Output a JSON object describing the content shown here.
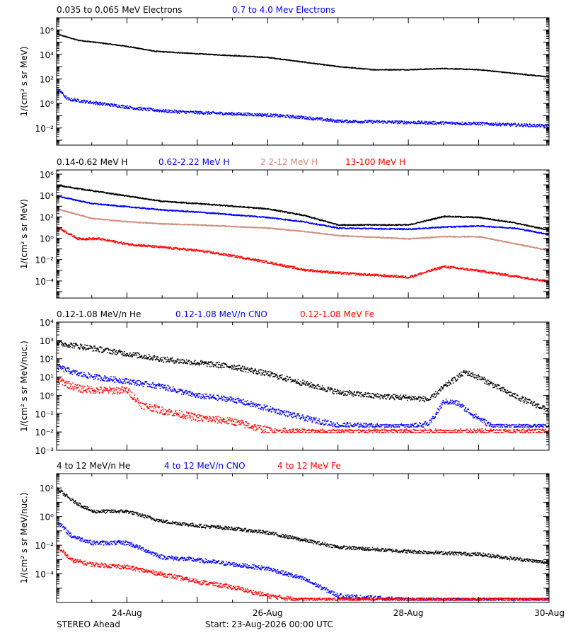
{
  "footer": {
    "left_label": "STEREO Ahead",
    "start_label": "Start: 23-Aug-2026 00:00 UTC"
  },
  "x_axis": {
    "tick_labels": [
      "24-Aug",
      "26-Aug",
      "28-Aug",
      "30-Aug"
    ],
    "tick_days": [
      1,
      3,
      5,
      7
    ],
    "range_days": [
      0,
      7
    ]
  },
  "chart_data": [
    {
      "type": "scatter",
      "yscale": "log",
      "ylabel": "1/(cm² s sr MeV)",
      "ylim_log10": [
        -3.4,
        7
      ],
      "y_tick_labels": [
        "10⁻²",
        "10⁰",
        "10²",
        "10⁴",
        "10⁶"
      ],
      "y_tick_exps": [
        -2,
        0,
        2,
        4,
        6
      ],
      "series": [
        {
          "name": "0.035 to 0.065 MeV Electrons",
          "color": "#000000",
          "noise": 0.03,
          "floor": null,
          "x": [
            0,
            0.3,
            0.6,
            1,
            1.4,
            2,
            3,
            4,
            4.5,
            5,
            5.5,
            6,
            6.5,
            7
          ],
          "log10_y": [
            5.7,
            5.2,
            5,
            4.7,
            4.3,
            4.1,
            3.8,
            3.05,
            2.8,
            2.8,
            2.9,
            2.8,
            2.5,
            2.2
          ]
        },
        {
          "name": "0.7 to 4.0 Mev Electrons",
          "color": "#0000ff",
          "noise": 0.12,
          "floor": null,
          "x": [
            0,
            0.15,
            0.4,
            0.8,
            1.2,
            1.6,
            2,
            2.5,
            3,
            3.5,
            4,
            5,
            6,
            7
          ],
          "log10_y": [
            1.3,
            0.4,
            0.2,
            -0.1,
            -0.4,
            -0.6,
            -0.7,
            -0.8,
            -0.9,
            -1.1,
            -1.4,
            -1.5,
            -1.6,
            -1.8
          ]
        }
      ]
    },
    {
      "type": "scatter",
      "yscale": "log",
      "ylabel": "1/(cm² s sr MeV)",
      "ylim_log10": [
        -5.6,
        6.4
      ],
      "y_tick_labels": [
        "10⁻⁴",
        "10⁻²",
        "10⁰",
        "10²",
        "10⁴",
        "10⁶"
      ],
      "y_tick_exps": [
        -4,
        -2,
        0,
        2,
        4,
        6
      ],
      "series": [
        {
          "name": "0.14-0.62 MeV H",
          "color": "#000000",
          "noise": 0.05,
          "floor": null,
          "x": [
            0,
            0.5,
            1,
            1.5,
            2,
            3,
            3.5,
            4,
            5,
            5.5,
            6,
            6.5,
            7
          ],
          "log10_y": [
            5,
            4.5,
            4,
            3.5,
            3.3,
            2.8,
            2.2,
            1.3,
            1.3,
            2.1,
            2,
            1.5,
            0.8
          ]
        },
        {
          "name": "0.62-2.22 MeV H",
          "color": "#0000ff",
          "noise": 0.05,
          "floor": null,
          "x": [
            0,
            0.5,
            1,
            1.5,
            2,
            3,
            3.5,
            4,
            5,
            5.5,
            6,
            6.5,
            7
          ],
          "log10_y": [
            4,
            3.3,
            3,
            2.7,
            2.5,
            2,
            1.6,
            1,
            0.9,
            1.1,
            1.2,
            1,
            0.4
          ]
        },
        {
          "name": "2.2-12 MeV H",
          "color": "#cd8c7a",
          "noise": 0.04,
          "floor": null,
          "x": [
            0,
            0.5,
            1,
            1.5,
            2,
            3,
            3.5,
            4,
            5,
            5.5,
            6,
            7
          ],
          "log10_y": [
            2.8,
            1.9,
            1.6,
            1.4,
            1.3,
            1,
            0.7,
            0.3,
            0,
            0.2,
            0.2,
            -1.1
          ]
        },
        {
          "name": "13-100 MeV H",
          "color": "#ff0000",
          "noise": 0.1,
          "floor": null,
          "x": [
            0,
            0.3,
            0.6,
            1,
            1.5,
            2,
            2.5,
            3,
            3.5,
            4,
            5,
            5.5,
            6,
            7
          ],
          "log10_y": [
            1.1,
            0,
            0,
            -0.5,
            -0.8,
            -1.1,
            -1.6,
            -2.2,
            -2.9,
            -3.2,
            -3.6,
            -2.6,
            -3,
            -4
          ]
        }
      ]
    },
    {
      "type": "scatter",
      "yscale": "log",
      "ylabel": "1/(cm² s sr MeV/nuc.)",
      "ylim_log10": [
        -3,
        4
      ],
      "y_tick_labels": [
        "10⁻³",
        "10⁻²",
        "10⁻¹",
        "10⁰",
        "10¹",
        "10²",
        "10³",
        "10⁴"
      ],
      "y_tick_exps": [
        -3,
        -2,
        -1,
        0,
        1,
        2,
        3,
        4
      ],
      "series": [
        {
          "name": "0.12-1.08 MeV/n He",
          "color": "#000000",
          "noise": 0.15,
          "floor": null,
          "x": [
            0,
            0.5,
            1,
            1.5,
            2,
            2.5,
            3,
            3.5,
            4,
            4.5,
            5,
            5.3,
            5.5,
            5.8,
            6,
            6.5,
            7
          ],
          "log10_y": [
            2.9,
            2.6,
            2.3,
            2,
            1.8,
            1.6,
            1.2,
            0.7,
            0.2,
            0,
            -0.1,
            -0.2,
            0.5,
            1.3,
            1,
            0,
            -0.8
          ]
        },
        {
          "name": "0.12-1.08 MeV/n CNO",
          "color": "#0000ff",
          "noise": 0.15,
          "floor": -1.7,
          "x": [
            0,
            0.3,
            0.6,
            1,
            1.5,
            2,
            2.5,
            3,
            3.5,
            4,
            5,
            5.3,
            5.5,
            5.7,
            5.9,
            6.2,
            7
          ],
          "log10_y": [
            1.6,
            1.2,
            1,
            0.8,
            0.5,
            0,
            -0.2,
            -0.7,
            -1.2,
            -1.6,
            -1.7,
            -1.5,
            -0.3,
            -0.4,
            -1,
            -1.7,
            -1.7
          ]
        },
        {
          "name": "0.12-1.08 MeV Fe",
          "color": "#ff0000",
          "noise": 0.2,
          "floor": -2,
          "x": [
            0,
            0.3,
            0.6,
            1,
            1.2,
            1.5,
            2,
            2.5,
            3,
            3.5,
            7
          ],
          "log10_y": [
            0.9,
            0.4,
            0.3,
            0.3,
            -0.5,
            -0.8,
            -1.2,
            -1.4,
            -1.9,
            -2,
            -2
          ]
        }
      ]
    },
    {
      "type": "scatter",
      "yscale": "log",
      "ylabel": "1/(cm² s sr MeV/nuc.)",
      "ylim_log10": [
        -6,
        3
      ],
      "y_tick_labels": [
        "10⁻⁴",
        "10⁻²",
        "10⁰",
        "10²"
      ],
      "y_tick_exps": [
        -4,
        -2,
        0,
        2
      ],
      "series": [
        {
          "name": "4 to 12 MeV/n He",
          "color": "#000000",
          "noise": 0.12,
          "floor": null,
          "x": [
            0,
            0.2,
            0.5,
            1,
            1.5,
            2,
            2.5,
            3,
            3.5,
            4,
            5,
            6,
            7
          ],
          "log10_y": [
            2,
            1.2,
            0.4,
            0.4,
            -0.3,
            -0.6,
            -0.8,
            -1.1,
            -1.6,
            -2.1,
            -2.4,
            -2.6,
            -3.2
          ]
        },
        {
          "name": "4 to 12 MeV/n CNO",
          "color": "#0000ff",
          "noise": 0.15,
          "floor": -5.8,
          "x": [
            0,
            0.2,
            0.5,
            1,
            1.5,
            2,
            2.5,
            3,
            3.5,
            4,
            5,
            7
          ],
          "log10_y": [
            -0.3,
            -1.3,
            -1.8,
            -1.8,
            -2.8,
            -3,
            -3.3,
            -3.6,
            -4.3,
            -5.5,
            -5.8,
            -5.8
          ]
        },
        {
          "name": "4 to 12 MeV Fe",
          "color": "#ff0000",
          "noise": 0.15,
          "floor": -5.8,
          "x": [
            0,
            0.2,
            0.5,
            1,
            1.5,
            2,
            2.5,
            3,
            3.5,
            4,
            7
          ],
          "log10_y": [
            -2,
            -3,
            -3.3,
            -3.5,
            -4,
            -4.5,
            -4.9,
            -5.5,
            -5.8,
            -5.8,
            -5.8
          ]
        }
      ]
    }
  ]
}
